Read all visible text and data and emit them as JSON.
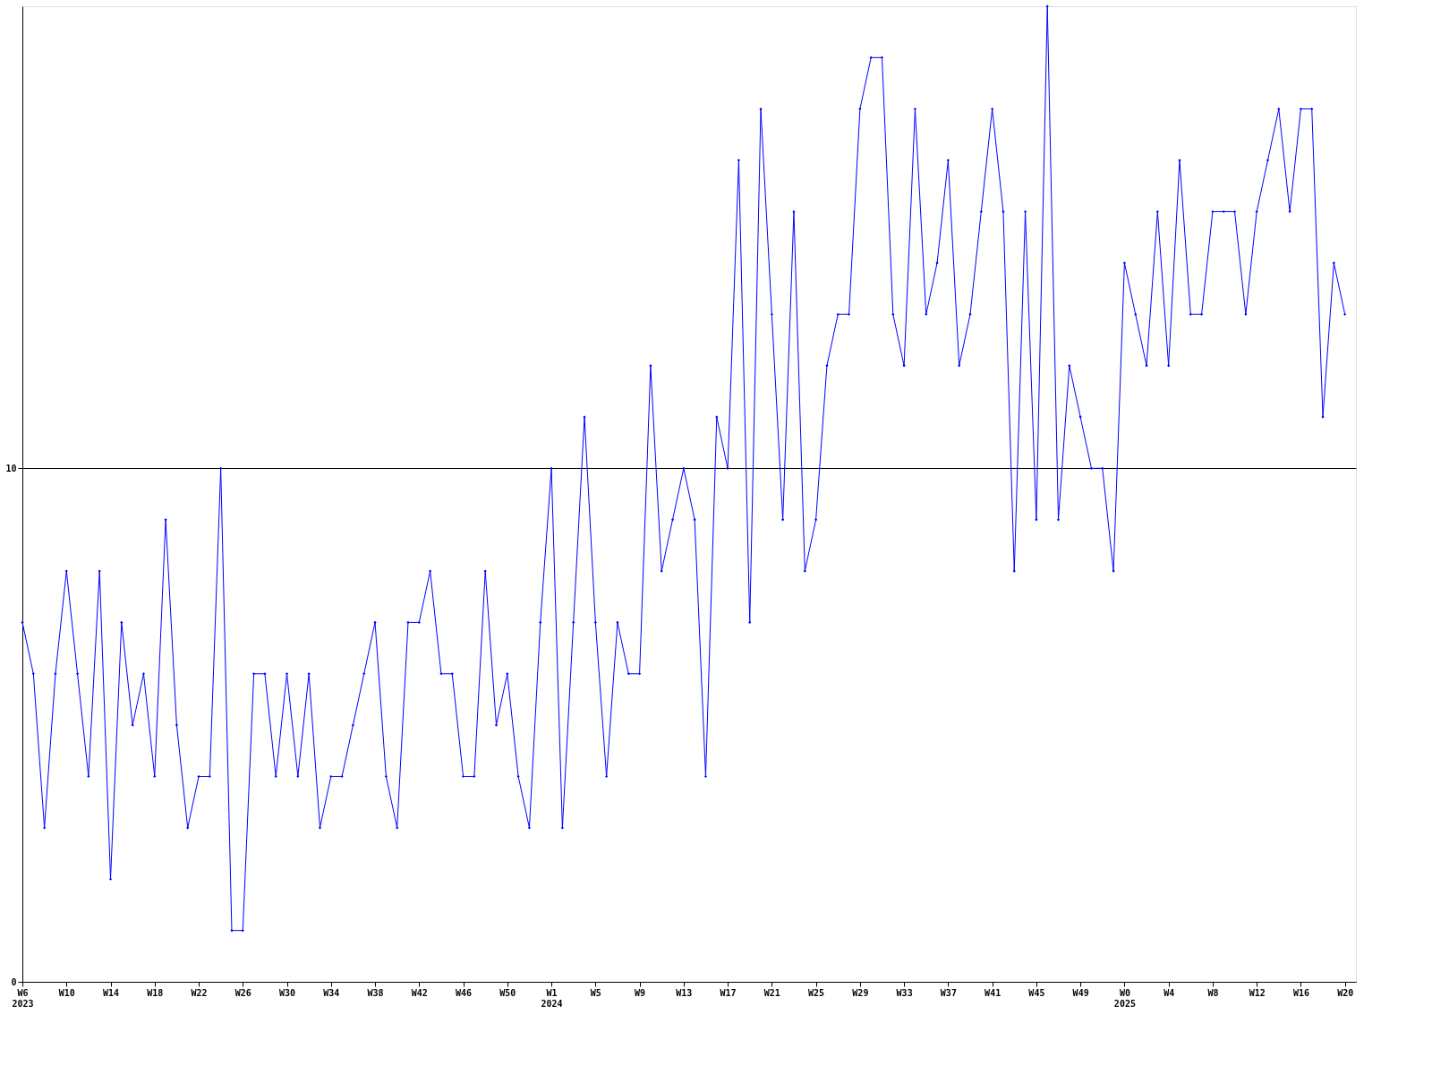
{
  "chart_data": {
    "type": "line",
    "categories": [
      "W6\n2023",
      null,
      null,
      null,
      "W10",
      null,
      null,
      null,
      "W14",
      null,
      null,
      null,
      "W18",
      null,
      null,
      null,
      "W22",
      null,
      null,
      null,
      "W26",
      null,
      null,
      null,
      "W30",
      null,
      null,
      null,
      "W34",
      null,
      null,
      null,
      "W38",
      null,
      null,
      null,
      "W42",
      null,
      null,
      null,
      "W46",
      null,
      null,
      null,
      "W50",
      null,
      null,
      null,
      "W1\n2024",
      null,
      null,
      null,
      "W5",
      null,
      null,
      null,
      "W9",
      null,
      null,
      null,
      "W13",
      null,
      null,
      null,
      "W17",
      null,
      null,
      null,
      "W21",
      null,
      null,
      null,
      "W25",
      null,
      null,
      null,
      "W29",
      null,
      null,
      null,
      "W33",
      null,
      null,
      null,
      "W37",
      null,
      null,
      null,
      "W41",
      null,
      null,
      null,
      "W45",
      null,
      null,
      null,
      "W49",
      null,
      null,
      null,
      "W0\n2025",
      null,
      null,
      null,
      "W4",
      null,
      null,
      null,
      "W8",
      null,
      null,
      null,
      "W12",
      null,
      null,
      null,
      "W16",
      null,
      null,
      null,
      "W20"
    ],
    "series": [
      {
        "color": "#0000ff",
        "values": [
          7,
          6,
          3,
          6,
          8,
          6,
          4,
          8,
          2,
          7,
          5,
          6,
          4,
          9,
          5,
          3,
          4,
          4,
          10,
          1,
          1,
          6,
          6,
          4,
          6,
          4,
          6,
          3,
          4,
          4,
          5,
          6,
          7,
          4,
          3,
          7,
          7,
          8,
          6,
          6,
          4,
          4,
          8,
          5,
          6,
          4,
          3,
          7,
          10,
          3,
          7,
          11,
          7,
          4,
          7,
          6,
          6,
          12,
          8,
          9,
          10,
          9,
          4,
          11,
          10,
          16,
          7,
          17,
          13,
          9,
          15,
          8,
          9,
          12,
          13,
          13,
          17,
          18,
          18,
          13,
          12,
          17,
          13,
          14,
          16,
          12,
          13,
          15,
          17,
          15,
          8,
          15,
          9,
          19,
          9,
          12,
          11,
          10,
          10,
          8,
          14,
          13,
          12,
          15,
          12,
          16,
          13,
          13,
          15,
          15,
          15,
          13,
          15,
          16,
          17,
          15,
          17,
          17,
          11,
          14,
          13
        ]
      }
    ],
    "ylim": [
      0,
      19
    ],
    "yticks": [
      0,
      10
    ],
    "grid": "y",
    "marker": "diamond",
    "line_style": "solid"
  }
}
